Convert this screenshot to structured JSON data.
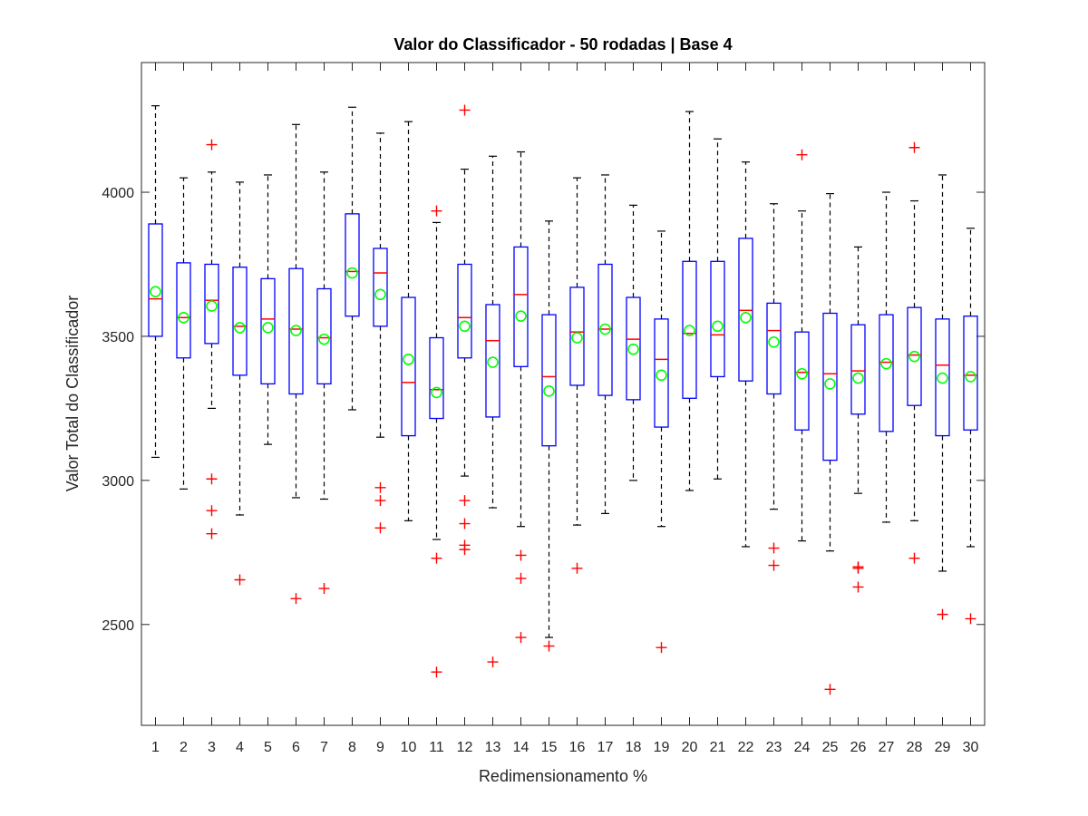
{
  "chart_data": {
    "type": "boxplot",
    "title": "Valor do Classificador - 50 rodadas | Base 4",
    "xlabel": "Redimensionamento %",
    "ylabel": "Valor Total do Classificador",
    "ylim": [
      2150,
      4450
    ],
    "yticks": [
      2500,
      3000,
      3500,
      4000
    ],
    "grid": false,
    "colors": {
      "box": "#0000ff",
      "median": "#ff0000",
      "whisker": "#000000",
      "outlier": "#ff0000",
      "mean": "#00ff00",
      "axes": "#262626"
    },
    "categories": [
      "1",
      "2",
      "3",
      "4",
      "5",
      "6",
      "7",
      "8",
      "9",
      "10",
      "11",
      "12",
      "13",
      "14",
      "15",
      "16",
      "17",
      "18",
      "19",
      "20",
      "21",
      "22",
      "23",
      "24",
      "25",
      "26",
      "27",
      "28",
      "29",
      "30"
    ],
    "boxes": [
      {
        "q1": 3500,
        "median": 3630,
        "q3": 3890,
        "whisker_low": 3080,
        "whisker_high": 4300,
        "mean": 3655,
        "outliers": []
      },
      {
        "q1": 3425,
        "median": 3565,
        "q3": 3755,
        "whisker_low": 2970,
        "whisker_high": 4050,
        "mean": 3565,
        "outliers": []
      },
      {
        "q1": 3475,
        "median": 3625,
        "q3": 3750,
        "whisker_low": 3250,
        "whisker_high": 4070,
        "mean": 3605,
        "outliers": [
          4165,
          3005,
          2895,
          2815
        ]
      },
      {
        "q1": 3365,
        "median": 3535,
        "q3": 3740,
        "whisker_low": 2880,
        "whisker_high": 4035,
        "mean": 3530,
        "outliers": [
          2655
        ]
      },
      {
        "q1": 3335,
        "median": 3560,
        "q3": 3700,
        "whisker_low": 3125,
        "whisker_high": 4060,
        "mean": 3530,
        "outliers": []
      },
      {
        "q1": 3300,
        "median": 3525,
        "q3": 3735,
        "whisker_low": 2940,
        "whisker_high": 4235,
        "mean": 3520,
        "outliers": [
          2590
        ]
      },
      {
        "q1": 3335,
        "median": 3495,
        "q3": 3665,
        "whisker_low": 2935,
        "whisker_high": 4070,
        "mean": 3490,
        "outliers": [
          2625
        ]
      },
      {
        "q1": 3570,
        "median": 3725,
        "q3": 3925,
        "whisker_low": 3245,
        "whisker_high": 4295,
        "mean": 3720,
        "outliers": []
      },
      {
        "q1": 3535,
        "median": 3720,
        "q3": 3805,
        "whisker_low": 3150,
        "whisker_high": 4205,
        "mean": 3645,
        "outliers": [
          2975,
          2930,
          2835
        ]
      },
      {
        "q1": 3155,
        "median": 3340,
        "q3": 3635,
        "whisker_low": 2860,
        "whisker_high": 4245,
        "mean": 3420,
        "outliers": []
      },
      {
        "q1": 3215,
        "median": 3315,
        "q3": 3495,
        "whisker_low": 2795,
        "whisker_high": 3895,
        "mean": 3305,
        "outliers": [
          3935,
          2730,
          2335
        ]
      },
      {
        "q1": 3425,
        "median": 3565,
        "q3": 3750,
        "whisker_low": 3015,
        "whisker_high": 4080,
        "mean": 3535,
        "outliers": [
          4285,
          2930,
          2850,
          2775,
          2760
        ]
      },
      {
        "q1": 3220,
        "median": 3485,
        "q3": 3610,
        "whisker_low": 2905,
        "whisker_high": 4125,
        "mean": 3410,
        "outliers": [
          2370
        ]
      },
      {
        "q1": 3395,
        "median": 3645,
        "q3": 3810,
        "whisker_low": 2840,
        "whisker_high": 4140,
        "mean": 3570,
        "outliers": [
          2740,
          2660,
          2455
        ]
      },
      {
        "q1": 3120,
        "median": 3360,
        "q3": 3575,
        "whisker_low": 2455,
        "whisker_high": 3900,
        "mean": 3310,
        "outliers": [
          2425
        ]
      },
      {
        "q1": 3330,
        "median": 3515,
        "q3": 3670,
        "whisker_low": 2845,
        "whisker_high": 4050,
        "mean": 3495,
        "outliers": [
          2695
        ]
      },
      {
        "q1": 3295,
        "median": 3525,
        "q3": 3750,
        "whisker_low": 2885,
        "whisker_high": 4060,
        "mean": 3525,
        "outliers": []
      },
      {
        "q1": 3280,
        "median": 3490,
        "q3": 3635,
        "whisker_low": 3000,
        "whisker_high": 3955,
        "mean": 3455,
        "outliers": []
      },
      {
        "q1": 3185,
        "median": 3420,
        "q3": 3560,
        "whisker_low": 2840,
        "whisker_high": 3865,
        "mean": 3365,
        "outliers": [
          2420
        ]
      },
      {
        "q1": 3285,
        "median": 3510,
        "q3": 3760,
        "whisker_low": 2965,
        "whisker_high": 4280,
        "mean": 3520,
        "outliers": []
      },
      {
        "q1": 3360,
        "median": 3505,
        "q3": 3760,
        "whisker_low": 3005,
        "whisker_high": 4185,
        "mean": 3535,
        "outliers": []
      },
      {
        "q1": 3345,
        "median": 3590,
        "q3": 3840,
        "whisker_low": 2770,
        "whisker_high": 4105,
        "mean": 3565,
        "outliers": []
      },
      {
        "q1": 3300,
        "median": 3520,
        "q3": 3615,
        "whisker_low": 2900,
        "whisker_high": 3960,
        "mean": 3480,
        "outliers": [
          2765,
          2705
        ]
      },
      {
        "q1": 3175,
        "median": 3375,
        "q3": 3515,
        "whisker_low": 2790,
        "whisker_high": 3935,
        "mean": 3370,
        "outliers": [
          4130
        ]
      },
      {
        "q1": 3070,
        "median": 3370,
        "q3": 3580,
        "whisker_low": 2755,
        "whisker_high": 3995,
        "mean": 3335,
        "outliers": [
          2275
        ]
      },
      {
        "q1": 3230,
        "median": 3380,
        "q3": 3540,
        "whisker_low": 2955,
        "whisker_high": 3810,
        "mean": 3355,
        "outliers": [
          2700,
          2695,
          2630
        ]
      },
      {
        "q1": 3170,
        "median": 3410,
        "q3": 3575,
        "whisker_low": 2855,
        "whisker_high": 4000,
        "mean": 3405,
        "outliers": []
      },
      {
        "q1": 3260,
        "median": 3435,
        "q3": 3600,
        "whisker_low": 2860,
        "whisker_high": 3970,
        "mean": 3430,
        "outliers": [
          4155,
          2730
        ]
      },
      {
        "q1": 3155,
        "median": 3400,
        "q3": 3560,
        "whisker_low": 2685,
        "whisker_high": 4060,
        "mean": 3355,
        "outliers": [
          2535
        ]
      },
      {
        "q1": 3175,
        "median": 3365,
        "q3": 3570,
        "whisker_low": 2770,
        "whisker_high": 3875,
        "mean": 3360,
        "outliers": [
          2520
        ]
      }
    ]
  }
}
